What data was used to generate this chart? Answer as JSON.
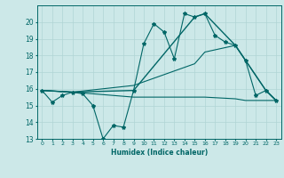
{
  "title": "",
  "xlabel": "Humidex (Indice chaleur)",
  "ylabel": "",
  "bg_color": "#cce8e8",
  "grid_color": "#b0d4d4",
  "line_color": "#006666",
  "xlim": [
    -0.5,
    23.5
  ],
  "ylim": [
    13,
    21
  ],
  "yticks": [
    13,
    14,
    15,
    16,
    17,
    18,
    19,
    20
  ],
  "xticks": [
    0,
    1,
    2,
    3,
    4,
    5,
    6,
    7,
    8,
    9,
    10,
    11,
    12,
    13,
    14,
    15,
    16,
    17,
    18,
    19,
    20,
    21,
    22,
    23
  ],
  "series": [
    {
      "x": [
        0,
        1,
        2,
        3,
        4,
        5,
        6,
        7,
        8,
        9,
        10,
        11,
        12,
        13,
        14,
        15,
        16,
        17,
        18,
        19,
        20,
        21,
        22,
        23
      ],
      "y": [
        15.9,
        15.2,
        15.6,
        15.8,
        15.7,
        15.0,
        13.0,
        13.8,
        13.7,
        15.9,
        18.7,
        19.9,
        19.4,
        17.8,
        20.5,
        20.3,
        20.5,
        19.2,
        18.8,
        18.6,
        17.7,
        15.6,
        15.9,
        15.3
      ],
      "marker": "*",
      "linewidth": 0.8,
      "markersize": 3.0
    },
    {
      "x": [
        0,
        3,
        9,
        15,
        16,
        19,
        20,
        22,
        23
      ],
      "y": [
        15.9,
        15.8,
        15.9,
        20.3,
        20.5,
        18.6,
        17.7,
        15.9,
        15.3
      ],
      "marker": null,
      "linewidth": 1.0,
      "markersize": 0
    },
    {
      "x": [
        0,
        3,
        9,
        15,
        16,
        19,
        20,
        22,
        23
      ],
      "y": [
        15.9,
        15.8,
        16.2,
        17.5,
        18.2,
        18.6,
        17.7,
        15.9,
        15.3
      ],
      "marker": null,
      "linewidth": 0.8,
      "markersize": 0
    },
    {
      "x": [
        0,
        3,
        9,
        15,
        16,
        19,
        20,
        22,
        23
      ],
      "y": [
        15.9,
        15.8,
        15.5,
        15.5,
        15.5,
        15.4,
        15.3,
        15.3,
        15.3
      ],
      "marker": null,
      "linewidth": 0.8,
      "markersize": 0
    }
  ]
}
